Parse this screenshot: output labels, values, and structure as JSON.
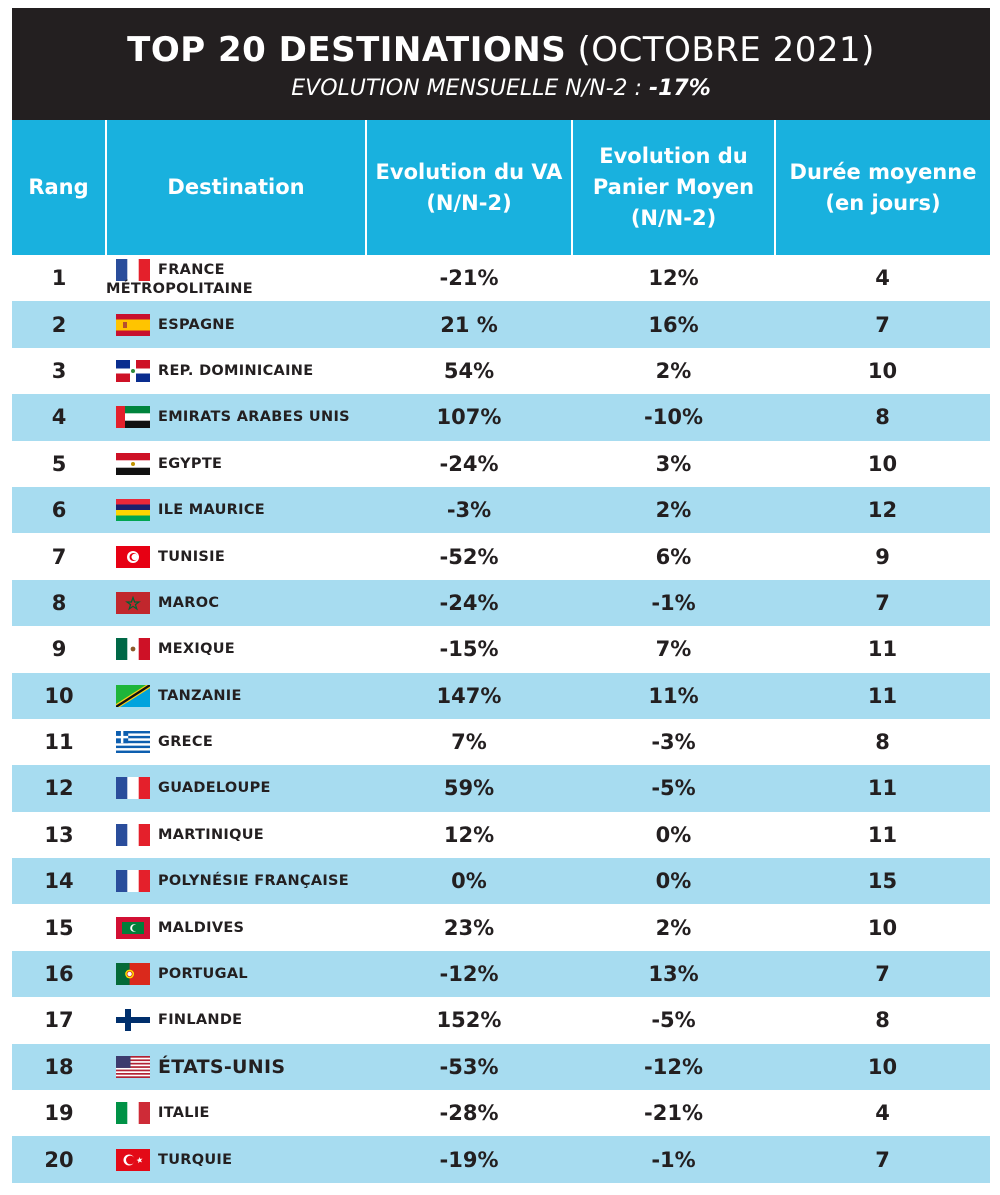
{
  "title": {
    "main": "TOP 20 DESTINATIONS",
    "sub": "(OCTOBRE 2021)",
    "subtitle_label": "EVOLUTION MENSUELLE N/N-2 :",
    "subtitle_value": "-17%"
  },
  "columns": [
    "Rang",
    "Destination",
    "Evolution du VA (N/N-2)",
    "Evolution du Panier Moyen (N/N-2)",
    "Durée moyenne (en jours)"
  ],
  "chart_data": {
    "type": "table",
    "columns": [
      "Rang",
      "Destination",
      "Evolution du VA (N/N-2)",
      "Evolution du Panier Moyen (N/N-2)",
      "Durée moyenne (en jours)"
    ],
    "rows": [
      {
        "rang": "1",
        "destination": "FRANCE MÉTROPOLITAINE",
        "flag": "france-flag-icon",
        "va": "-21%",
        "panier": "12%",
        "duree": "4"
      },
      {
        "rang": "2",
        "destination": "ESPAGNE",
        "flag": "spain-flag-icon",
        "va": "21 %",
        "panier": "16%",
        "duree": "7"
      },
      {
        "rang": "3",
        "destination": "REP. DOMINICAINE",
        "flag": "dominican-republic-flag-icon",
        "va": "54%",
        "panier": "2%",
        "duree": "10"
      },
      {
        "rang": "4",
        "destination": "EMIRATS ARABES UNIS",
        "flag": "uae-flag-icon",
        "va": "107%",
        "panier": "-10%",
        "duree": "8"
      },
      {
        "rang": "5",
        "destination": "EGYPTE",
        "flag": "egypt-flag-icon",
        "va": "-24%",
        "panier": "3%",
        "duree": "10"
      },
      {
        "rang": "6",
        "destination": "ILE MAURICE",
        "flag": "mauritius-flag-icon",
        "va": "-3%",
        "panier": "2%",
        "duree": "12"
      },
      {
        "rang": "7",
        "destination": "TUNISIE",
        "flag": "tunisia-flag-icon",
        "va": "-52%",
        "panier": "6%",
        "duree": "9"
      },
      {
        "rang": "8",
        "destination": "MAROC",
        "flag": "morocco-flag-icon",
        "va": "-24%",
        "panier": "-1%",
        "duree": "7"
      },
      {
        "rang": "9",
        "destination": "MEXIQUE",
        "flag": "mexico-flag-icon",
        "va": "-15%",
        "panier": "7%",
        "duree": "11"
      },
      {
        "rang": "10",
        "destination": "TANZANIE",
        "flag": "tanzania-flag-icon",
        "va": "147%",
        "panier": "11%",
        "duree": "11"
      },
      {
        "rang": "11",
        "destination": "GRECE",
        "flag": "greece-flag-icon",
        "va": "7%",
        "panier": "-3%",
        "duree": "8"
      },
      {
        "rang": "12",
        "destination": "GUADELOUPE",
        "flag": "france-flag-icon",
        "va": "59%",
        "panier": "-5%",
        "duree": "11"
      },
      {
        "rang": "13",
        "destination": "MARTINIQUE",
        "flag": "france-flag-icon",
        "va": "12%",
        "panier": "0%",
        "duree": "11"
      },
      {
        "rang": "14",
        "destination": "POLYNÉSIE FRANÇAISE",
        "flag": "france-flag-icon",
        "va": "0%",
        "panier": "0%",
        "duree": "15"
      },
      {
        "rang": "15",
        "destination": "MALDIVES",
        "flag": "maldives-flag-icon",
        "va": "23%",
        "panier": "2%",
        "duree": "10"
      },
      {
        "rang": "16",
        "destination": "PORTUGAL",
        "flag": "portugal-flag-icon",
        "va": "-12%",
        "panier": "13%",
        "duree": "7"
      },
      {
        "rang": "17",
        "destination": "FINLANDE",
        "flag": "finland-flag-icon",
        "va": "152%",
        "panier": "-5%",
        "duree": "8"
      },
      {
        "rang": "18",
        "destination": "ÉTATS-UNIS",
        "flag": "usa-flag-icon",
        "va": "-53%",
        "panier": "-12%",
        "duree": "10"
      },
      {
        "rang": "19",
        "destination": "ITALIE",
        "flag": "italy-flag-icon",
        "va": "-28%",
        "panier": "-21%",
        "duree": "4"
      },
      {
        "rang": "20",
        "destination": "TURQUIE",
        "flag": "turkey-flag-icon",
        "va": "-19%",
        "panier": "-1%",
        "duree": "7"
      }
    ]
  },
  "colors": {
    "title_background": "#231f20",
    "header_background": "#19b1de",
    "stripe_background": "#a7dcf0",
    "text": "#231f20"
  }
}
